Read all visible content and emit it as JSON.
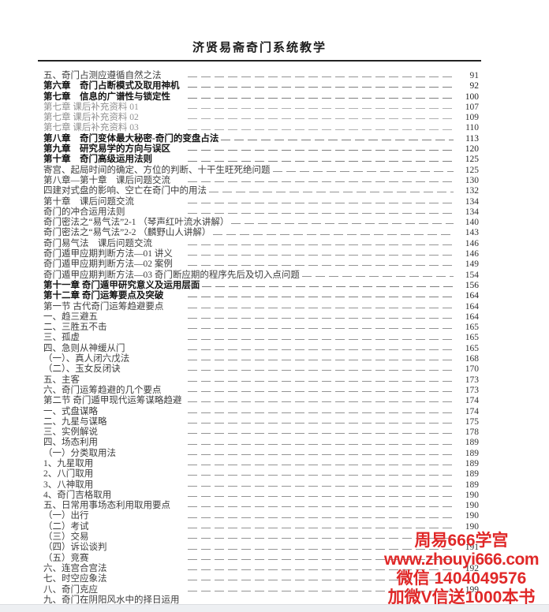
{
  "page_header": {
    "title": "济贤易斋奇门系统教学"
  },
  "toc": {
    "items": [
      {
        "label": "五、奇门占测应遵循自然之法",
        "page": "91",
        "style": "normal"
      },
      {
        "label": "第六章　奇门占断模式及取用神机",
        "page": "92",
        "style": "bold"
      },
      {
        "label": "第七章　信息的广谱性与锁定性",
        "page": "100",
        "style": "bold"
      },
      {
        "label": "第七章 课后补充资料 01",
        "page": "107",
        "style": "light"
      },
      {
        "label": "第七章 课后补充资料 02",
        "page": "109",
        "style": "light"
      },
      {
        "label": "第七章 课后补充资料 03",
        "page": "110",
        "style": "light"
      },
      {
        "label": "第八章　奇门变体最大秘密-奇门的变盘占法",
        "page": "113",
        "style": "bold"
      },
      {
        "label": "第九章　研究易学的方向与误区",
        "page": "120",
        "style": "bold"
      },
      {
        "label": "第十章　奇门高级运用法则",
        "page": "125",
        "style": "bold"
      },
      {
        "label": "寄宫、起局时间的确定、方位的判断、十干生旺死绝问题",
        "page": "125",
        "style": "normal"
      },
      {
        "label": "第八章—第十章　课后问题交流",
        "page": "130",
        "style": "normal"
      },
      {
        "label": "四建对式盘的影响、空亡在奇门中的用法",
        "page": "132",
        "style": "normal"
      },
      {
        "label": "第十章　课后问题交流",
        "page": "134",
        "style": "normal"
      },
      {
        "label": "奇门的冲合运用法则",
        "page": "134",
        "style": "normal"
      },
      {
        "label": "奇门密法之“易气法”2-1 （琴声红叶流水讲解）",
        "page": "140",
        "style": "normal"
      },
      {
        "label": "奇门密法之“易气法”2-2 （麟野山人讲解）",
        "page": "143",
        "style": "normal"
      },
      {
        "label": "奇门易气法　课后问题交流",
        "page": "146",
        "style": "normal"
      },
      {
        "label": "奇门遁甲应期判断方法—01 讲义",
        "page": "146",
        "style": "normal"
      },
      {
        "label": "奇门遁甲应期判断方法—02 案例",
        "page": "149",
        "style": "normal"
      },
      {
        "label": "奇门遁甲应期判断方法—03 奇门断应期的程序先后及切入点问题",
        "page": "154",
        "style": "normal"
      },
      {
        "label": "第十一章 奇门遁甲研究意义及运用层面",
        "page": "156",
        "style": "bold"
      },
      {
        "label": "第十二章 奇门运筹要点及突破",
        "page": "164",
        "style": "bold"
      },
      {
        "label": "第一节 古代奇门运筹趋避要点",
        "page": "164",
        "style": "normal"
      },
      {
        "label": "一、趋三避五",
        "page": "164",
        "style": "normal"
      },
      {
        "label": "二、三胜五不击",
        "page": "165",
        "style": "normal"
      },
      {
        "label": "三、孤虚",
        "page": "165",
        "style": "normal"
      },
      {
        "label": "四、急则从神缓从门",
        "page": "165",
        "style": "normal"
      },
      {
        "label": "（一）、真人闭六戊法",
        "page": "168",
        "style": "normal"
      },
      {
        "label": "（二）、玉女反闭诀",
        "page": "170",
        "style": "normal"
      },
      {
        "label": "五、主客",
        "page": "173",
        "style": "normal"
      },
      {
        "label": "六、奇门运筹趋避的几个要点",
        "page": "173",
        "style": "normal"
      },
      {
        "label": "第二节 奇门遁甲现代运筹谋略趋避",
        "page": "174",
        "style": "normal"
      },
      {
        "label": "一、式盘谋略",
        "page": "174",
        "style": "normal"
      },
      {
        "label": "二、九星与谋略",
        "page": "175",
        "style": "normal"
      },
      {
        "label": "三、实例解说",
        "page": "178",
        "style": "normal"
      },
      {
        "label": "四、场态利用",
        "page": "189",
        "style": "normal"
      },
      {
        "label": "（一）分类取用法",
        "page": "189",
        "style": "normal"
      },
      {
        "label": "1、九星取用",
        "page": "189",
        "style": "normal"
      },
      {
        "label": "2、八门取用",
        "page": "189",
        "style": "normal"
      },
      {
        "label": "3、八神取用",
        "page": "189",
        "style": "normal"
      },
      {
        "label": "4、奇门吉格取用",
        "page": "190",
        "style": "normal"
      },
      {
        "label": "五、日常用事场态利用取用要点",
        "page": "190",
        "style": "normal"
      },
      {
        "label": "（一）出行",
        "page": "190",
        "style": "normal"
      },
      {
        "label": "（二）考试",
        "page": "190",
        "style": "normal"
      },
      {
        "label": "（三）交易",
        "page": "",
        "style": "normal"
      },
      {
        "label": "（四）诉讼谈判",
        "page": "191",
        "style": "normal"
      },
      {
        "label": "（五）竞赛",
        "page": "",
        "style": "normal"
      },
      {
        "label": "六、连宫合宫法",
        "page": "192",
        "style": "normal"
      },
      {
        "label": "七、时空应象法",
        "page": "",
        "style": "normal"
      },
      {
        "label": "八、奇门克应",
        "page": "199",
        "style": "normal"
      },
      {
        "label": "九、奇门在阴阳风水中的择日运用",
        "page": "",
        "style": "normal",
        "leader": false
      }
    ]
  },
  "watermark": {
    "color": "#e02828",
    "lines": [
      "周易666学宫",
      "www.zhouyi666.com",
      "微信 1404049576",
      "加微V信送1000本书"
    ]
  }
}
